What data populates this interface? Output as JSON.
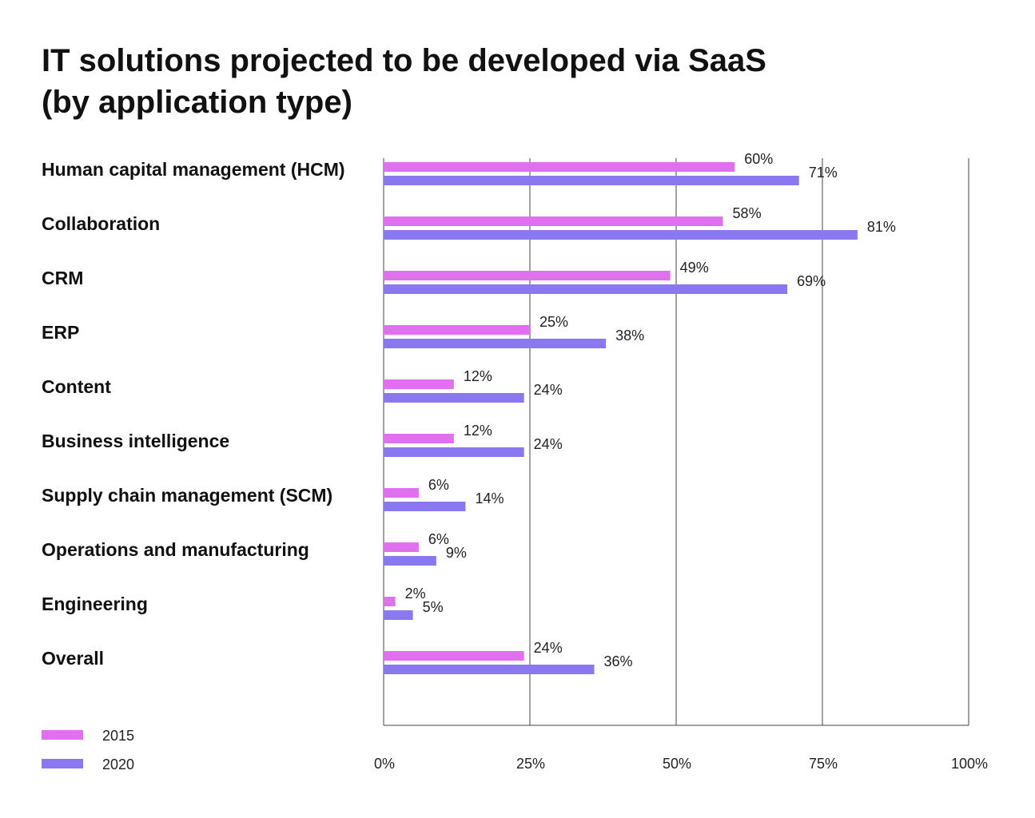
{
  "title_line1": "IT solutions projected to be developed via SaaS",
  "title_line2": "(by application type)",
  "colors": {
    "2015": "#e070f0",
    "2020": "#8a78f0"
  },
  "chart_data": {
    "type": "bar",
    "orientation": "horizontal",
    "title": "IT solutions projected to be developed via SaaS (by application type)",
    "categories": [
      "Human capital management (HCM)",
      "Collaboration",
      "CRM",
      "ERP",
      "Content",
      "Business intelligence",
      "Supply chain management (SCM)",
      "Operations and manufacturing",
      "Engineering",
      "Overall"
    ],
    "series": [
      {
        "name": "2015",
        "values": [
          60,
          58,
          49,
          25,
          12,
          12,
          6,
          6,
          2,
          24
        ],
        "labels": [
          "60%",
          "58%",
          "49%",
          "25%",
          "12%",
          "12%",
          "6%",
          "6%",
          "2%",
          "24%"
        ]
      },
      {
        "name": "2020",
        "values": [
          71,
          81,
          69,
          38,
          24,
          24,
          14,
          9,
          5,
          36
        ],
        "labels": [
          "71%",
          "81%",
          "69%",
          "38%",
          "24%",
          "24%",
          "14%",
          "9%",
          "5%",
          "36%"
        ]
      }
    ],
    "xlim": [
      0,
      100
    ],
    "xticks": [
      0,
      25,
      50,
      75,
      100
    ],
    "xtick_labels": [
      "0%",
      "25%",
      "50%",
      "75%",
      "100%"
    ],
    "grid": true,
    "legend": "bottom-left"
  }
}
